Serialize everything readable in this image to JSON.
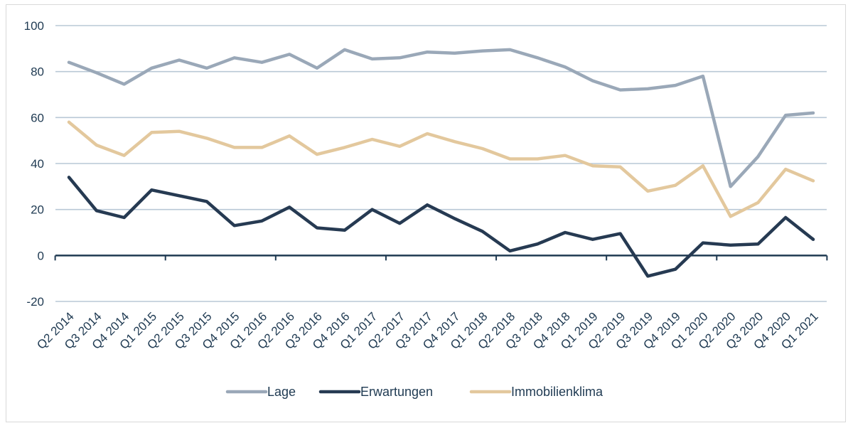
{
  "chart_data": {
    "type": "line",
    "title": "",
    "xlabel": "",
    "ylabel": "",
    "ylim": [
      -20,
      100
    ],
    "yticks": [
      100,
      80,
      60,
      40,
      20,
      0,
      -20
    ],
    "grid": true,
    "legend_position": "bottom",
    "categories": [
      "Q2 2014",
      "Q3 2014",
      "Q4 2014",
      "Q1 2015",
      "Q2 2015",
      "Q3 2015",
      "Q4 2015",
      "Q1 2016",
      "Q2 2016",
      "Q3 2016",
      "Q4 2016",
      "Q1 2017",
      "Q2 2017",
      "Q3 2017",
      "Q4 2017",
      "Q1 2018",
      "Q2 2018",
      "Q3 2018",
      "Q4 2018",
      "Q1 2019",
      "Q2 2019",
      "Q3 2019",
      "Q4 2019",
      "Q1 2020",
      "Q2 2020",
      "Q3 2020",
      "Q4 2020",
      "Q1 2021"
    ],
    "series": [
      {
        "name": "Lage",
        "color": "#9aa8b8",
        "values": [
          84,
          79.5,
          74.5,
          81.5,
          85,
          81.5,
          86,
          84,
          87.5,
          81.5,
          89.5,
          85.5,
          86,
          88.5,
          88,
          89,
          89.5,
          86,
          82,
          76,
          72,
          72.5,
          74,
          78,
          30,
          43,
          61,
          62
        ]
      },
      {
        "name": "Erwartungen",
        "color": "#263a52",
        "values": [
          34,
          19.5,
          16.5,
          28.5,
          26,
          23.5,
          13,
          15,
          21,
          12,
          11,
          20,
          14,
          22,
          16,
          10.5,
          2,
          5,
          10,
          7,
          9.5,
          -9,
          -6,
          5.5,
          4.5,
          5,
          16.5,
          7
        ]
      },
      {
        "name": "Immobilienklima",
        "color": "#e3c89d",
        "values": [
          58,
          48,
          43.5,
          53.5,
          54,
          51,
          47,
          47,
          52,
          44,
          47,
          50.5,
          47.5,
          53,
          49.5,
          46.5,
          42,
          42,
          43.5,
          39,
          38.5,
          28,
          30.5,
          39,
          17,
          23,
          37.5,
          32.5
        ]
      }
    ]
  }
}
